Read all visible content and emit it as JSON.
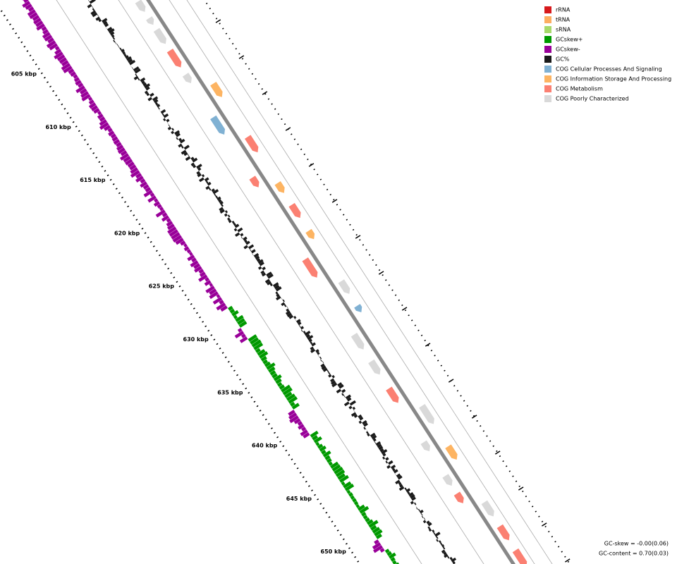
{
  "legend": {
    "items": [
      {
        "label": "rRNA",
        "color": "#d7191c"
      },
      {
        "label": "tRNA",
        "color": "#fdae61"
      },
      {
        "label": "sRNA",
        "color": "#a6d96a"
      },
      {
        "label": "GCskew+",
        "color": "#009900"
      },
      {
        "label": "GCskew-",
        "color": "#990099"
      },
      {
        "label": "GC%",
        "color": "#1a1a1a"
      },
      {
        "label": "COG Cellular Processes And Signaling",
        "color": "#80b1d3"
      },
      {
        "label": "COG Information Storage And Processing",
        "color": "#fdb462"
      },
      {
        "label": "COG Metabolism",
        "color": "#fb8072"
      },
      {
        "label": "COG Poorly Characterized",
        "color": "#d9d9d9"
      }
    ]
  },
  "ruler": {
    "labels": [
      "605 kbp",
      "610 kbp",
      "615 kbp",
      "620 kbp",
      "625 kbp",
      "630 kbp",
      "635 kbp",
      "640 kbp",
      "645 kbp",
      "650 kbp"
    ]
  },
  "footer": {
    "gc_skew": "GC-skew = -0.00(0.06)",
    "gc_content": "GC-content = 0.70(0.03)"
  }
}
